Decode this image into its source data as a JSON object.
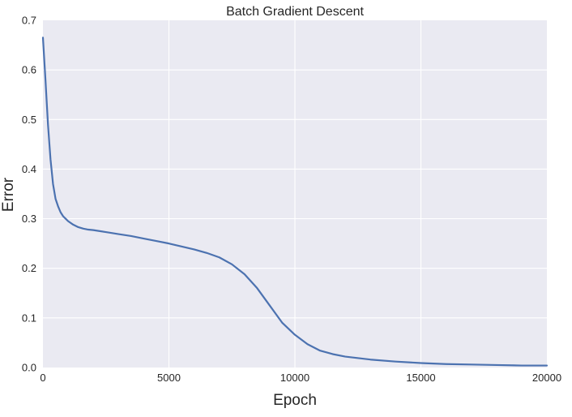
{
  "chart_data": {
    "type": "line",
    "title": "Batch Gradient Descent",
    "xlabel": "Epoch",
    "ylabel": "Error",
    "xlim": [
      0,
      20000
    ],
    "ylim": [
      0.0,
      0.7
    ],
    "xticks": [
      0,
      5000,
      10000,
      15000,
      20000
    ],
    "xtick_labels": [
      "0",
      "5000",
      "10000",
      "15000",
      "20000"
    ],
    "yticks": [
      0.0,
      0.1,
      0.2,
      0.3,
      0.4,
      0.5,
      0.6,
      0.7
    ],
    "ytick_labels": [
      "0.0",
      "0.1",
      "0.2",
      "0.3",
      "0.4",
      "0.5",
      "0.6",
      "0.7"
    ],
    "grid": true,
    "colors": {
      "plot_background": "#eaeaf2",
      "grid": "#ffffff",
      "line": "#4c72b0"
    },
    "series": [
      {
        "x": [
          0,
          100,
          200,
          300,
          400,
          500,
          600,
          700,
          800,
          900,
          1000,
          1200,
          1400,
          1600,
          1800,
          2000,
          2500,
          3000,
          3500,
          4000,
          4500,
          5000,
          5500,
          6000,
          6500,
          7000,
          7500,
          8000,
          8500,
          9000,
          9500,
          10000,
          10500,
          11000,
          11500,
          12000,
          13000,
          14000,
          15000,
          16000,
          17000,
          18000,
          19000,
          20000
        ],
        "y": [
          0.665,
          0.58,
          0.49,
          0.42,
          0.37,
          0.34,
          0.325,
          0.313,
          0.305,
          0.3,
          0.295,
          0.288,
          0.283,
          0.28,
          0.278,
          0.277,
          0.273,
          0.269,
          0.265,
          0.26,
          0.255,
          0.25,
          0.244,
          0.238,
          0.231,
          0.222,
          0.208,
          0.188,
          0.16,
          0.125,
          0.09,
          0.066,
          0.047,
          0.034,
          0.027,
          0.022,
          0.016,
          0.012,
          0.009,
          0.007,
          0.006,
          0.005,
          0.004,
          0.004
        ]
      }
    ]
  }
}
